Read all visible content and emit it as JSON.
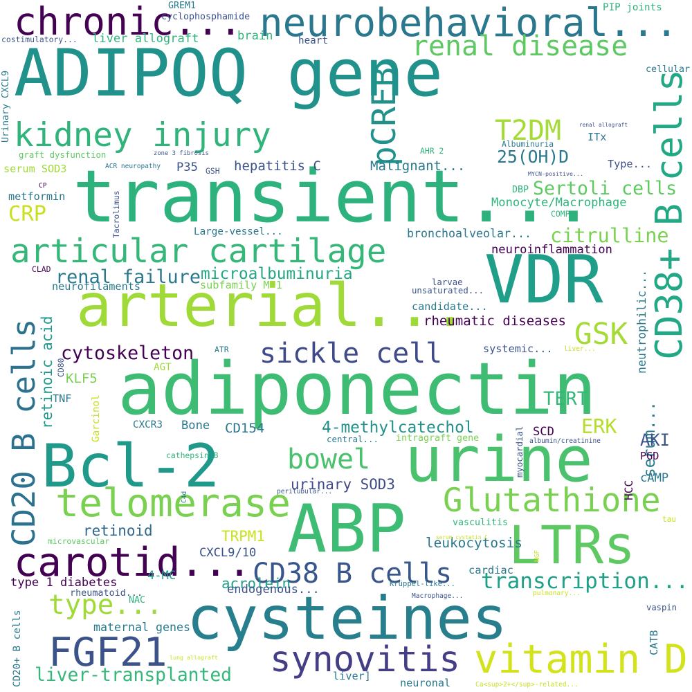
{
  "word_cloud": {
    "words": [
      {
        "text": "ADIPOQ gene",
        "color": "#21918c"
      },
      {
        "text": "transient...",
        "color": "#2db27d"
      },
      {
        "text": "adiponectin",
        "color": "#3fbc73"
      },
      {
        "text": "arterial...",
        "color": "#a0da39"
      },
      {
        "text": "cysteines",
        "color": "#277f8e"
      },
      {
        "text": "Bcl-2",
        "color": "#1f9a8a"
      },
      {
        "text": "ABP",
        "color": "#3fbc73"
      },
      {
        "text": "VDR",
        "color": "#1f9e89"
      },
      {
        "text": "LTRs",
        "color": "#5ec962"
      },
      {
        "text": "urine",
        "color": "#4ac16d"
      },
      {
        "text": "chronic...",
        "color": "#440154"
      },
      {
        "text": "neurobehavioral...",
        "color": "#2a788e"
      },
      {
        "text": "kidney injury",
        "color": "#2fb47c"
      },
      {
        "text": "articular cartilage",
        "color": "#35b779"
      },
      {
        "text": "carotid...",
        "color": "#440154"
      },
      {
        "text": "telomerase",
        "color": "#7ad151"
      },
      {
        "text": "Glutathione",
        "color": "#7ad151"
      },
      {
        "text": "FGF21",
        "color": "#3b528b"
      },
      {
        "text": "vitamin D",
        "color": "#d2e21b"
      },
      {
        "text": "synovitis",
        "color": "#433e85"
      },
      {
        "text": "sickle cell",
        "color": "#3e4a89"
      },
      {
        "text": "renal disease",
        "color": "#5ec962"
      },
      {
        "text": "pCREB",
        "color": "#21918c"
      },
      {
        "text": "CD38+ B cells",
        "color": "#22a884"
      },
      {
        "text": "CD20 B cells",
        "color": "#2c728e"
      },
      {
        "text": "T2DM",
        "color": "#a5db36"
      },
      {
        "text": "bowel",
        "color": "#4ac16d"
      },
      {
        "text": "type...",
        "color": "#a0da39"
      },
      {
        "text": "CD38 B cells",
        "color": "#39568c"
      },
      {
        "text": "transcription...",
        "color": "#1fa188"
      },
      {
        "text": "GSK",
        "color": "#a5db36"
      },
      {
        "text": "renal failure",
        "color": "#2a788e"
      },
      {
        "text": "cytoskeleton",
        "color": "#440154"
      },
      {
        "text": "liver-transplanted",
        "color": "#35b779"
      },
      {
        "text": "citrulline",
        "color": "#7ad151"
      },
      {
        "text": "Sertoli cells",
        "color": "#5ec962"
      },
      {
        "text": "25(OH)D",
        "color": "#2a788e"
      },
      {
        "text": "CRP",
        "color": "#c8e020"
      },
      {
        "text": "retinoic acid",
        "color": "#1f9a8a"
      },
      {
        "text": "microalbuminuria",
        "color": "#22a884"
      },
      {
        "text": "4-methylcatechol",
        "color": "#21918c"
      },
      {
        "text": "rheumatic diseases",
        "color": "#440154"
      },
      {
        "text": "urinary SOD3",
        "color": "#3e4a89"
      },
      {
        "text": "TERT",
        "color": "#35b779"
      },
      {
        "text": "ERK",
        "color": "#b5de2b"
      },
      {
        "text": "serum...",
        "color": "#2a788e"
      },
      {
        "text": "hepatitis C",
        "color": "#3b528b"
      },
      {
        "text": "Malignant...",
        "color": "#2a788e"
      },
      {
        "text": "leukocytosis",
        "color": "#2a788e"
      },
      {
        "text": "carotid...",
        "color": "#440154"
      },
      {
        "text": "retinoid",
        "color": "#31688e"
      },
      {
        "text": "TRPM1",
        "color": "#c8e020"
      },
      {
        "text": "acrolein",
        "color": "#1f9e89"
      },
      {
        "text": "maternal genes",
        "color": "#2a788e"
      },
      {
        "text": "neutrophilic...",
        "color": "#2a788e"
      },
      {
        "text": "CD154",
        "color": "#2a788e"
      },
      {
        "text": "AKI",
        "color": "#3b528b"
      },
      {
        "text": "Monocyte/Macrophage",
        "color": "#2fb47c"
      },
      {
        "text": "neuroinflammation",
        "color": "#440154"
      },
      {
        "text": "bronchoalveolar...",
        "color": "#2a788e"
      },
      {
        "text": "KLF5",
        "color": "#7ad151"
      },
      {
        "text": "type 1 diabetes",
        "color": "#440154"
      },
      {
        "text": "endogenous...",
        "color": "#3b528b"
      },
      {
        "text": "cardiac",
        "color": "#2a788e"
      },
      {
        "text": "CXCL9/10",
        "color": "#3b528b"
      },
      {
        "text": "4-MC",
        "color": "#1f9e89"
      },
      {
        "text": "rheumatoid...",
        "color": "#3b528b"
      },
      {
        "text": "liver allograft",
        "color": "#2fb47c"
      },
      {
        "text": "GREM1",
        "color": "#2a788e"
      },
      {
        "text": "cyclophosphamide",
        "color": "#3b528b"
      },
      {
        "text": "costimulatory...",
        "color": "#3b528b"
      },
      {
        "text": "brain",
        "color": "#2fb47c"
      },
      {
        "text": "heart",
        "color": "#3b528b"
      },
      {
        "text": "PIP joints",
        "color": "#2fb47c"
      },
      {
        "text": "cellular",
        "color": "#2a788e"
      },
      {
        "text": "Urinary CXCL9",
        "color": "#2a788e"
      },
      {
        "text": "graft dysfunction",
        "color": "#5ec962"
      },
      {
        "text": "zone 3 fibrosis",
        "color": "#3b528b"
      },
      {
        "text": "Albuminuria",
        "color": "#2a788e"
      },
      {
        "text": "AHR 2",
        "color": "#2fb47c"
      },
      {
        "text": "renal allograft",
        "color": "#3b528b"
      },
      {
        "text": "ITx",
        "color": "#2a788e"
      },
      {
        "text": "Type...",
        "color": "#3b528b"
      },
      {
        "text": "MYCN-positive...",
        "color": "#3b528b"
      },
      {
        "text": "serum SOD3",
        "color": "#a0da39"
      },
      {
        "text": "ACR neuropathy",
        "color": "#2a788e"
      },
      {
        "text": "P35",
        "color": "#3b528b"
      },
      {
        "text": "GSH",
        "color": "#3b528b"
      },
      {
        "text": "metformin",
        "color": "#2a788e"
      },
      {
        "text": "CP",
        "color": "#440154"
      },
      {
        "text": "Tacrolimus",
        "color": "#3b528b"
      },
      {
        "text": "DBP",
        "color": "#2fb47c"
      },
      {
        "text": "COMP",
        "color": "#2fb47c"
      },
      {
        "text": "Large-vessel...",
        "color": "#2a788e"
      },
      {
        "text": "CLAD",
        "color": "#440154"
      },
      {
        "text": "neurofilaments",
        "color": "#2a788e"
      },
      {
        "text": "subfamily M 1",
        "color": "#7ad151"
      },
      {
        "text": "larvae",
        "color": "#3b528b"
      },
      {
        "text": "unsaturated...",
        "color": "#3b528b"
      },
      {
        "text": "candidate...",
        "color": "#2a788e"
      },
      {
        "text": "CD80",
        "color": "#3b528b"
      },
      {
        "text": "systemic...",
        "color": "#3b528b"
      },
      {
        "text": "ATR",
        "color": "#2a788e"
      },
      {
        "text": "liver...",
        "color": "#c8e020"
      },
      {
        "text": "AGT",
        "color": "#a0da39"
      },
      {
        "text": "TNF",
        "color": "#2a788e"
      },
      {
        "text": "Garcinol",
        "color": "#c8e020"
      },
      {
        "text": "CXCR3",
        "color": "#2a788e"
      },
      {
        "text": "Bone",
        "color": "#2a788e"
      },
      {
        "text": "SCD",
        "color": "#440154"
      },
      {
        "text": "central...",
        "color": "#2a788e"
      },
      {
        "text": "intragraft gene",
        "color": "#7ad151"
      },
      {
        "text": "albumin/creatinine",
        "color": "#3b528b"
      },
      {
        "text": "myocardial",
        "color": "#3b528b"
      },
      {
        "text": "PGD",
        "color": "#440154"
      },
      {
        "text": "cathepsin B",
        "color": "#2fb47c"
      },
      {
        "text": "C4d",
        "color": "#2a788e"
      },
      {
        "text": "HCC",
        "color": "#440154"
      },
      {
        "text": "cAMP",
        "color": "#2a788e"
      },
      {
        "text": "peritubular...",
        "color": "#3b528b"
      },
      {
        "text": "vasculitis",
        "color": "#2fb47c"
      },
      {
        "text": "tau",
        "color": "#c8e020"
      },
      {
        "text": "microvascular",
        "color": "#5ec962"
      },
      {
        "text": "serum cystatin C",
        "color": "#c8e020"
      },
      {
        "text": "NGF",
        "color": "#c8e020"
      },
      {
        "text": "NAC",
        "color": "#2fb47c"
      },
      {
        "text": "Krüppel-like...",
        "color": "#2a788e"
      },
      {
        "text": "Macrophage...",
        "color": "#3b528b"
      },
      {
        "text": "pulmonary...",
        "color": "#c8e020"
      },
      {
        "text": "vaspin",
        "color": "#3b528b"
      },
      {
        "text": "CATB",
        "color": "#2a788e"
      },
      {
        "text": "CD20+ B cells",
        "color": "#2a788e"
      },
      {
        "text": "lung allograft",
        "color": "#c8e020"
      },
      {
        "text": "liver]",
        "color": "#2a788e"
      },
      {
        "text": "neuronal",
        "color": "#2a788e"
      },
      {
        "text": "Ca<sup>2+</sup>-related...",
        "color": "#c8e020"
      }
    ]
  }
}
